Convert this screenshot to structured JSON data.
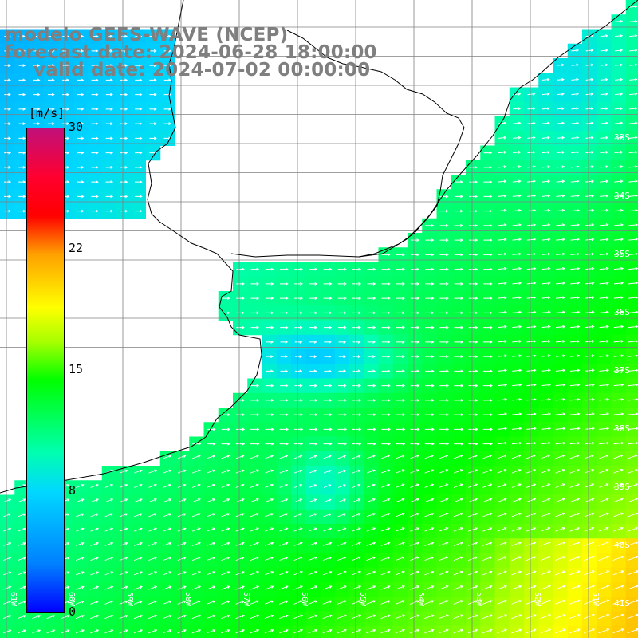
{
  "title": {
    "line1": "modelo GEFS-WAVE (NCEP)",
    "line2": "forecast date: 2024-06-28 18:00:00",
    "line3": "valid date: 2024-07-02 00:00:00"
  },
  "colorbar": {
    "units": "[m/s]",
    "ticks": [
      {
        "label": "30",
        "value": 30
      },
      {
        "label": "22",
        "value": 22
      },
      {
        "label": "15",
        "value": 15
      },
      {
        "label": "8",
        "value": 8
      },
      {
        "label": "0",
        "value": 0
      }
    ]
  },
  "map": {
    "lat_labels": [
      "33S",
      "34S",
      "35S",
      "36S",
      "37S",
      "38S",
      "39S",
      "40S",
      "41S"
    ],
    "lon_labels": [
      "61W",
      "60W",
      "59W",
      "58W",
      "57W",
      "56W",
      "55W",
      "54W",
      "53W",
      "52W",
      "51W"
    ],
    "wind_direction": "east",
    "land_color": "#ffffff",
    "grid_color": "#808080"
  }
}
